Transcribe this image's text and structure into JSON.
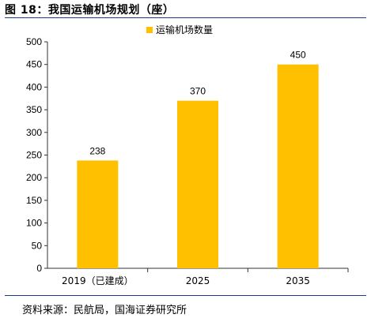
{
  "figure": {
    "title": "图 18：我国运输机场规划（座）",
    "source": "资料来源：民航局，国海证券研究所"
  },
  "colors": {
    "bar": "#FFC000",
    "axis": "#333333",
    "rule": "#1a3c8a"
  },
  "chart_data": {
    "type": "bar",
    "title": "",
    "xlabel": "",
    "ylabel": "",
    "categories": [
      "2019（已建成）",
      "2025",
      "2035"
    ],
    "series": [
      {
        "name": "运输机场数量",
        "values": [
          238,
          370,
          450
        ]
      }
    ],
    "ylim": [
      0,
      500
    ],
    "yticks": [
      "0",
      "50",
      "100",
      "150",
      "200",
      "250",
      "300",
      "350",
      "400",
      "450",
      "500"
    ],
    "data_labels": [
      "238",
      "370",
      "450"
    ],
    "legend_position": "top-center",
    "grid": false
  }
}
